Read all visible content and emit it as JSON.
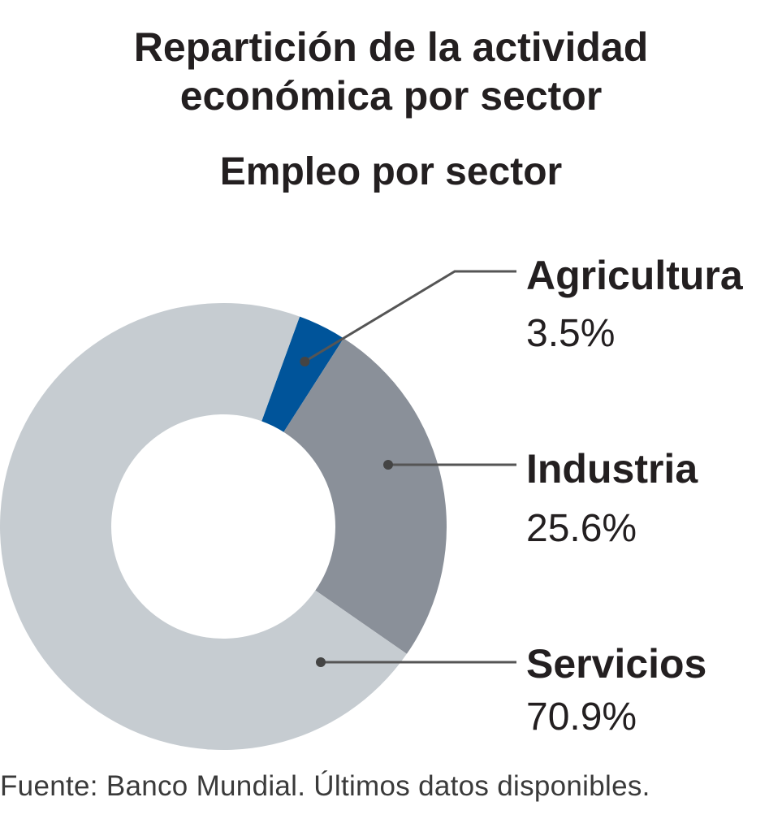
{
  "chart_data": {
    "type": "pie",
    "title_lines": [
      "Repartición de la actividad",
      "económica por sector"
    ],
    "subtitle": "Empleo por sector",
    "slices": [
      {
        "label": "Agricultura",
        "value": 3.5,
        "value_label": "3.5%",
        "color": "#00549a"
      },
      {
        "label": "Industria",
        "value": 25.6,
        "value_label": "25.6%",
        "color": "#8a9099"
      },
      {
        "label": "Servicios",
        "value": 70.9,
        "value_label": "70.9%",
        "color": "#c6ccd1"
      }
    ],
    "donut": true,
    "legend": "labels to the right with leader lines",
    "source": "Fuente: Banco Mundial. Últimos datos disponibles."
  }
}
